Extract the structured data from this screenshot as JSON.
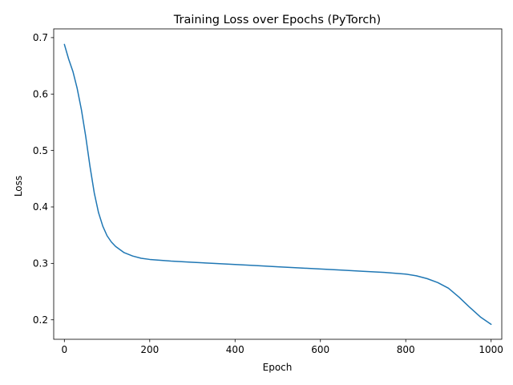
{
  "chart_data": {
    "type": "line",
    "title": "Training Loss over Epochs (PyTorch)",
    "xlabel": "Epoch",
    "ylabel": "Loss",
    "xlim": [
      -25,
      1025
    ],
    "ylim": [
      0.1655,
      0.7155
    ],
    "xticks": [
      0,
      200,
      400,
      600,
      800,
      1000
    ],
    "xtick_labels": [
      "0",
      "200",
      "400",
      "600",
      "800",
      "1000"
    ],
    "yticks": [
      0.2,
      0.3,
      0.4,
      0.5,
      0.6,
      0.7
    ],
    "ytick_labels": [
      "0.2",
      "0.3",
      "0.4",
      "0.5",
      "0.6",
      "0.7"
    ],
    "grid": false,
    "legend": "none",
    "series": [
      {
        "color": "#1f77b4",
        "x": [
          0,
          10,
          20,
          30,
          40,
          50,
          60,
          70,
          80,
          90,
          100,
          110,
          120,
          140,
          160,
          180,
          200,
          250,
          300,
          350,
          400,
          450,
          500,
          550,
          600,
          650,
          700,
          750,
          800,
          825,
          850,
          875,
          900,
          925,
          950,
          975,
          1000
        ],
        "y": [
          0.688,
          0.662,
          0.64,
          0.61,
          0.572,
          0.525,
          0.472,
          0.425,
          0.39,
          0.366,
          0.349,
          0.338,
          0.33,
          0.319,
          0.313,
          0.309,
          0.307,
          0.304,
          0.302,
          0.3,
          0.298,
          0.296,
          0.294,
          0.292,
          0.29,
          0.288,
          0.286,
          0.284,
          0.281,
          0.278,
          0.273,
          0.266,
          0.256,
          0.24,
          0.222,
          0.205,
          0.192
        ]
      }
    ]
  }
}
